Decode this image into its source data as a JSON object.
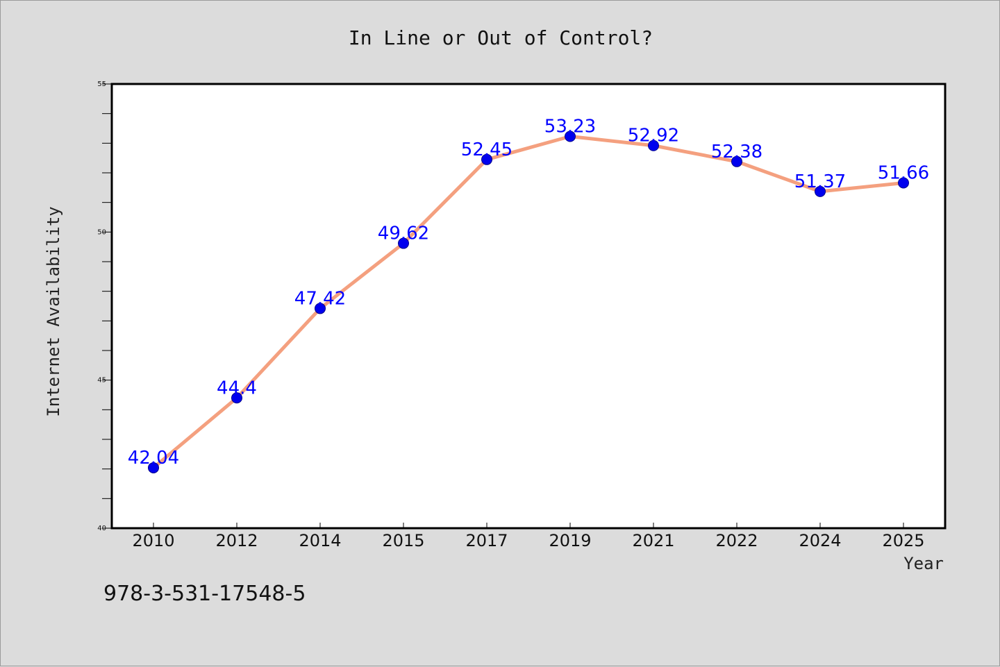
{
  "chart_data": {
    "type": "line",
    "title": "In Line or Out of Control?",
    "xlabel": "Year",
    "ylabel": "Internet Availability",
    "categories": [
      "2010",
      "2012",
      "2014",
      "2015",
      "2017",
      "2019",
      "2021",
      "2022",
      "2024",
      "2025"
    ],
    "series": [
      {
        "values": [
          42.04,
          44.4,
          47.42,
          49.62,
          52.45,
          53.23,
          52.92,
          52.38,
          51.37,
          51.66
        ],
        "labels": [
          "42.04",
          "44.4",
          "47.42",
          "49.62",
          "52.45",
          "53.23",
          "52.92",
          "52.38",
          "51.37",
          "51.66"
        ]
      }
    ],
    "ylim": [
      40,
      55
    ],
    "yticks": [
      "40",
      "45",
      "50",
      "55"
    ],
    "grid": false,
    "line_color": "#f4a07f",
    "marker_color": "#0000ee",
    "label_color": "#0000ff"
  },
  "footer": {
    "isbn": "978-3-531-17548-5"
  },
  "colors": {
    "background": "#dcdcdc",
    "plot_background": "#ffffff"
  }
}
